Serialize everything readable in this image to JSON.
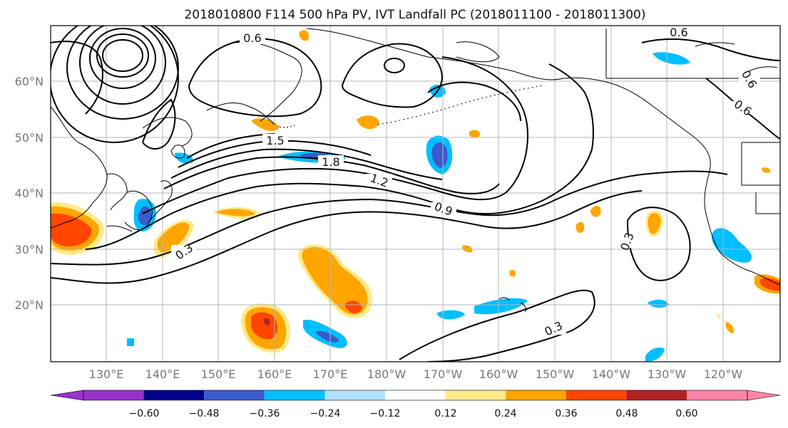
{
  "title": "2018010800 F114 500 hPa PV, IVT Landfall PC (2018011100 - 2018011300)",
  "lon_labels": [
    "130°E",
    "140°E",
    "150°E",
    "160°E",
    "170°E",
    "180°W",
    "170°W",
    "160°W",
    "150°W",
    "140°W",
    "130°W",
    "120°W"
  ],
  "lat_labels": [
    "60°N",
    "50°N",
    "40°N",
    "30°N",
    "20°N"
  ],
  "contour_labels": [
    "0.6",
    "0.6",
    "1.5",
    "1.8",
    "1.2",
    "0.9",
    "0.3",
    "0.3",
    "0.3",
    "0.6",
    "0.6"
  ],
  "colorbar": {
    "ticks": [
      "−0.60",
      "−0.48",
      "−0.36",
      "−0.24",
      "−0.12",
      "0.12",
      "0.24",
      "0.36",
      "0.48",
      "0.60"
    ],
    "colors": [
      "#9932cc",
      "#00008b",
      "#3a5acd",
      "#00bfff",
      "#b0e2ff",
      "#ffffff",
      "#ffea8a",
      "#ffa500",
      "#ff4500",
      "#b22222",
      "#ff85a8"
    ]
  }
}
